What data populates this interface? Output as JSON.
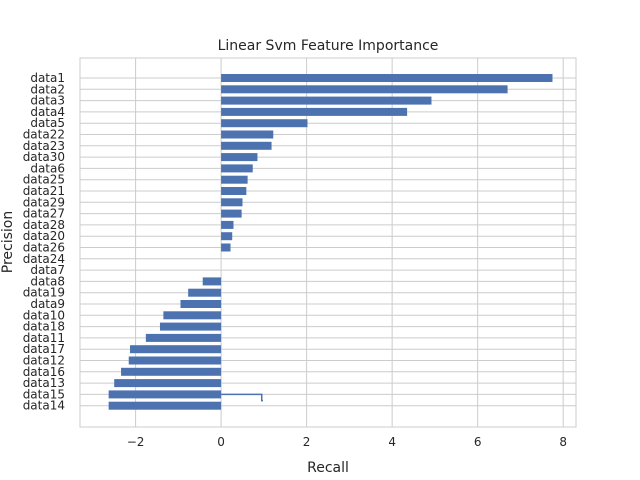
{
  "chart_data": {
    "type": "bar",
    "orientation": "horizontal",
    "title": "Linear Svm Feature Importance",
    "xlabel": "Recall",
    "ylabel": "Precision",
    "xlim": [
      -3.3,
      8.3
    ],
    "xticks": [
      -2,
      0,
      2,
      4,
      6,
      8
    ],
    "xtick_labels": [
      "−2",
      "0",
      "2",
      "4",
      "6",
      "8"
    ],
    "grid": true,
    "bar_color": "#4c72b0",
    "categories": [
      "data1",
      "data2",
      "data3",
      "data4",
      "data5",
      "data22",
      "data23",
      "data30",
      "data6",
      "data25",
      "data21",
      "data29",
      "data27",
      "data28",
      "data20",
      "data26",
      "data24",
      "data7",
      "data8",
      "data19",
      "data9",
      "data10",
      "data18",
      "data11",
      "data17",
      "data12",
      "data16",
      "data13",
      "data15",
      "data14"
    ],
    "values": [
      7.75,
      6.7,
      4.92,
      4.35,
      2.02,
      1.22,
      1.18,
      0.85,
      0.74,
      0.62,
      0.59,
      0.5,
      0.48,
      0.29,
      0.26,
      0.22,
      0.0,
      0.0,
      -0.43,
      -0.77,
      -0.95,
      -1.35,
      -1.43,
      -1.76,
      -2.13,
      -2.16,
      -2.34,
      -2.5,
      -2.63,
      -2.63
    ],
    "extra_line": {
      "name": "step",
      "x": [
        0,
        0.95,
        0.95,
        0.98
      ],
      "y_index": [
        28,
        28,
        28.55,
        28.55
      ],
      "color": "#4c72b0"
    }
  }
}
